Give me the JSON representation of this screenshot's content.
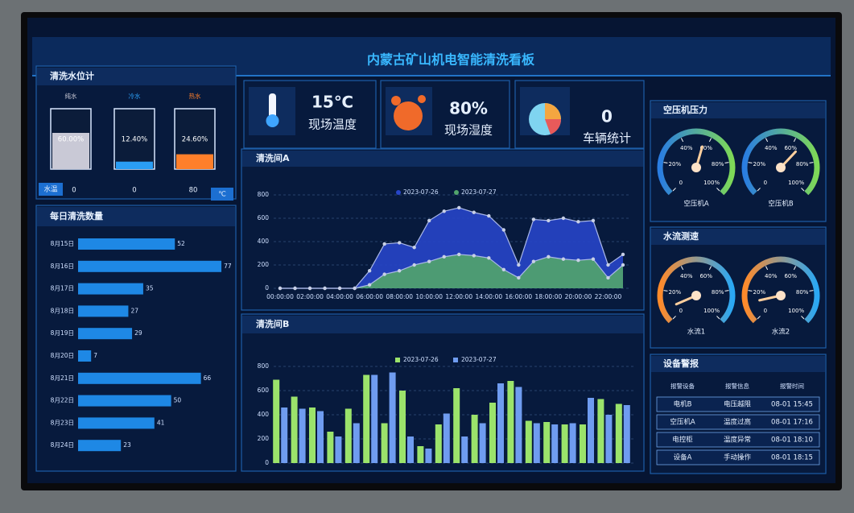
{
  "header": {
    "title": "内蒙古矿山机电智能清洗看板"
  },
  "water_level": {
    "title": "清洗水位计",
    "ylim": [
      0,
      100
    ],
    "tanks": [
      {
        "label": "纯水",
        "value": 60,
        "value_label": "60.00%",
        "color": "#c9c9d6"
      },
      {
        "label": "冷水",
        "value": 12.4,
        "value_label": "12.40%",
        "color": "#2a9df4"
      },
      {
        "label": "热水",
        "value": 24.6,
        "value_label": "24.60%",
        "color": "#ff7f2a"
      }
    ],
    "temp_label": "水温",
    "temps": [
      0,
      0,
      80
    ],
    "temp_unit": "℃"
  },
  "kpis": [
    {
      "value": "15℃",
      "label": "现场温度"
    },
    {
      "value": "80%",
      "label": "现场湿度"
    },
    {
      "value": "0",
      "label": "车辆统计"
    }
  ],
  "alarms": {
    "title": "设备警报",
    "header": [
      "报警设备",
      "报警信息",
      "报警时间"
    ],
    "rows": [
      [
        "电机B",
        "电压越限",
        "08-01 15:45"
      ],
      [
        "空压机A",
        "温度过高",
        "08-01 17:16"
      ],
      [
        "电控柜",
        "温度异常",
        "08-01 18:10"
      ],
      [
        "设备A",
        "手动操作",
        "08-01 18:15"
      ]
    ]
  },
  "chart_data": [
    {
      "type": "hbar",
      "title": "每日清洗数量",
      "categories": [
        "8月15日",
        "8月16日",
        "8月17日",
        "8月18日",
        "8月19日",
        "8月20日",
        "8月21日",
        "8月22日",
        "8月23日",
        "8月24日"
      ],
      "values": [
        52,
        77,
        35,
        27,
        29,
        7,
        66,
        50,
        41,
        23
      ],
      "color": "#1e88e5",
      "xlim": [
        0,
        80
      ]
    },
    {
      "type": "area",
      "title": "清洗间A",
      "x": [
        "00:00:00",
        null,
        "02:00:00",
        null,
        "04:00:00",
        null,
        "06:00:00",
        null,
        "08:00:00",
        null,
        "10:00:00",
        null,
        "12:00:00",
        null,
        "14:00:00",
        null,
        "16:00:00",
        null,
        "18:00:00",
        null,
        "20:00:00",
        null,
        "22:00:00",
        null
      ],
      "series": [
        {
          "name": "2023-07-26",
          "color": "#2745c8",
          "values": [
            0,
            0,
            0,
            0,
            0,
            0,
            150,
            380,
            390,
            350,
            580,
            660,
            690,
            650,
            620,
            500,
            200,
            590,
            580,
            600,
            570,
            580,
            200,
            290
          ]
        },
        {
          "name": "2023-07-27",
          "color": "#52a56c",
          "values": [
            0,
            0,
            0,
            0,
            0,
            0,
            30,
            120,
            150,
            200,
            230,
            270,
            290,
            280,
            260,
            160,
            90,
            230,
            270,
            250,
            240,
            250,
            90,
            200
          ]
        }
      ],
      "ylim": [
        0,
        800
      ],
      "yticks": [
        0,
        200,
        400,
        600,
        800
      ],
      "grid": true
    },
    {
      "type": "bar",
      "title": "清洗间B",
      "categories": [
        null,
        null,
        null,
        null,
        null,
        null,
        null,
        null,
        null,
        null,
        null,
        null,
        null,
        null,
        null,
        null,
        null,
        null,
        null,
        null
      ],
      "series": [
        {
          "name": "2023-07-26",
          "color": "#9be36b",
          "values": [
            690,
            550,
            460,
            260,
            450,
            730,
            330,
            600,
            140,
            320,
            620,
            400,
            500,
            680,
            350,
            340,
            320,
            320,
            530,
            490
          ]
        },
        {
          "name": "2023-07-27",
          "color": "#6f9cf0",
          "values": [
            460,
            450,
            430,
            220,
            330,
            730,
            750,
            220,
            120,
            410,
            220,
            330,
            660,
            630,
            330,
            320,
            330,
            540,
            400,
            480
          ]
        }
      ],
      "ylim": [
        0,
        800
      ],
      "yticks": [
        0,
        200,
        400,
        600,
        800
      ],
      "grid": true
    },
    {
      "type": "gauge",
      "title": "空压机压力",
      "categories": [
        "空压机A",
        "空压机B"
      ],
      "values": [
        56,
        66
      ],
      "ylim": [
        0,
        100
      ],
      "yticks": [
        0,
        {
          "value": 20,
          "label": "20%"
        },
        {
          "value": 40,
          "label": "40%"
        },
        {
          "value": 60,
          "label": "60%"
        },
        {
          "value": 80,
          "label": "80%"
        },
        {
          "value": 100,
          "label": "100%"
        }
      ],
      "arc_colors": [
        "#2a7de1",
        "#7ed957"
      ]
    },
    {
      "type": "gauge",
      "title": "水流测速",
      "categories": [
        "水流1",
        "水流2"
      ],
      "values": [
        8,
        12
      ],
      "ylim": [
        0,
        100
      ],
      "yticks": [
        0,
        {
          "value": 20,
          "label": "20%"
        },
        {
          "value": 40,
          "label": "40%"
        },
        {
          "value": 60,
          "label": "60%"
        },
        {
          "value": 80,
          "label": "80%"
        },
        {
          "value": 100,
          "label": "100%"
        }
      ],
      "arc_colors": [
        "#ff8a2a",
        "#2aa8f4"
      ]
    }
  ]
}
